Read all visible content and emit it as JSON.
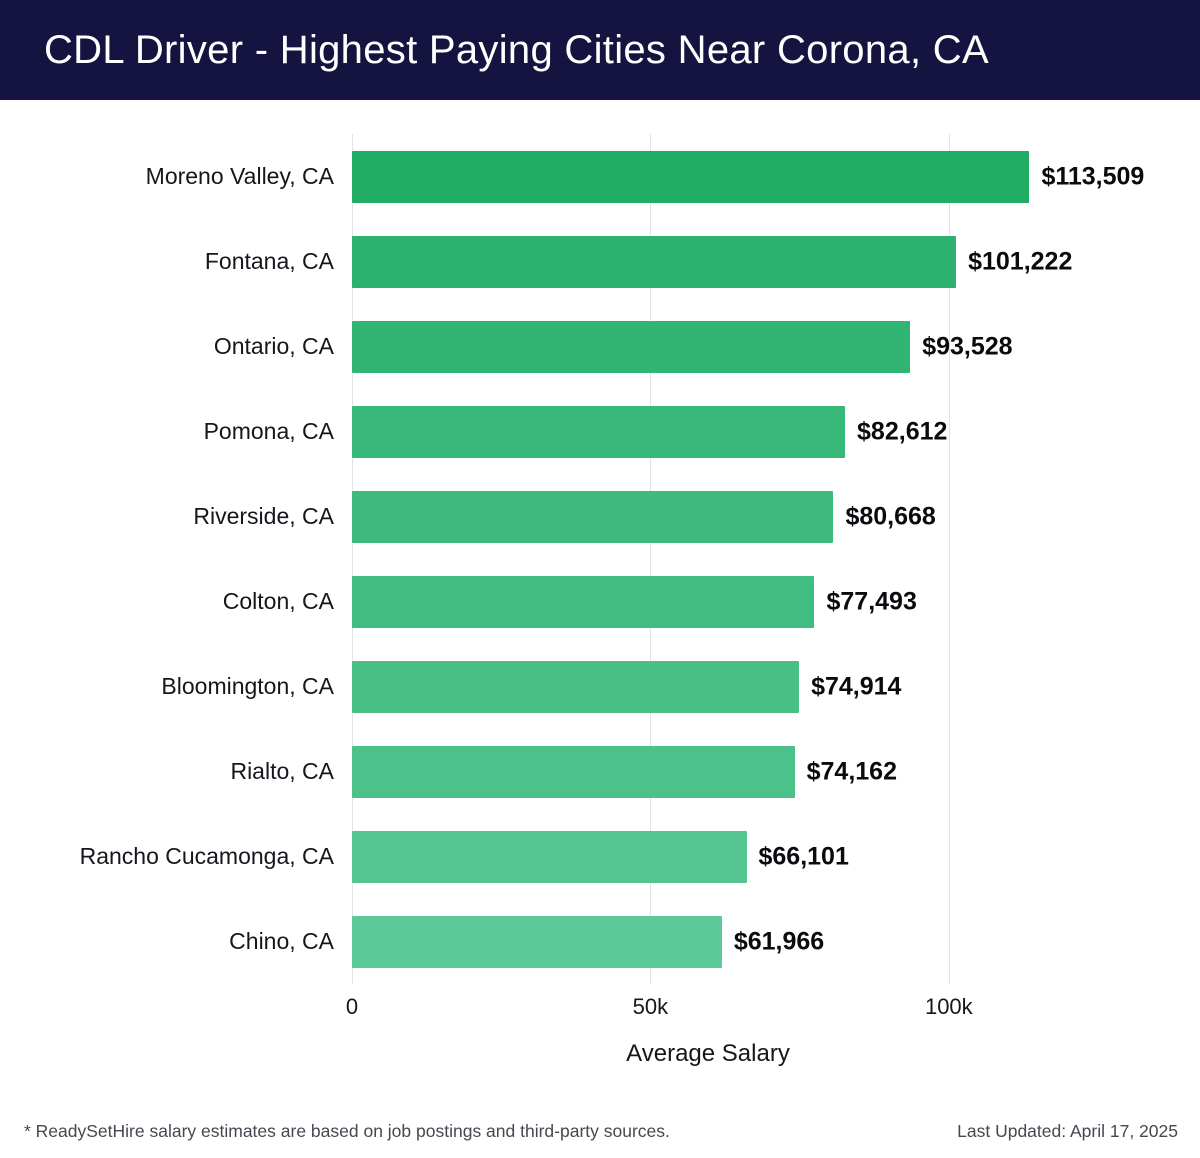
{
  "header": {
    "title": "CDL Driver - Highest Paying Cities Near Corona, CA"
  },
  "chart_data": {
    "type": "bar",
    "orientation": "horizontal",
    "title": "CDL Driver - Highest Paying Cities Near Corona, CA",
    "categories": [
      "Moreno Valley, CA",
      "Fontana, CA",
      "Ontario, CA",
      "Pomona, CA",
      "Riverside, CA",
      "Colton, CA",
      "Bloomington, CA",
      "Rialto, CA",
      "Rancho Cucamonga, CA",
      "Chino, CA"
    ],
    "values": [
      113509,
      101222,
      93528,
      82612,
      80668,
      77493,
      74914,
      74162,
      66101,
      61966
    ],
    "value_labels": [
      "$113,509",
      "$101,222",
      "$93,528",
      "$82,612",
      "$80,668",
      "$77,493",
      "$74,914",
      "$74,162",
      "$66,101",
      "$61,966"
    ],
    "bar_colors": [
      "#21ad64",
      "#2cb26e",
      "#32b573",
      "#38b878",
      "#3dba7c",
      "#42bd81",
      "#47bf85",
      "#4cc18a",
      "#54c591",
      "#5cc998"
    ],
    "xlabel": "Average Salary",
    "xlim": [
      0,
      119300
    ],
    "xticks": [
      {
        "value": 0,
        "label": "0"
      },
      {
        "value": 50000,
        "label": "50k"
      },
      {
        "value": 100000,
        "label": "100k"
      }
    ],
    "grid": "vertical",
    "legend": "none"
  },
  "footer": {
    "note": "* ReadySetHire salary estimates are based on job postings and third-party sources.",
    "last_updated": "Last Updated: April 17, 2025"
  },
  "colors": {
    "header_bg": "#151440",
    "title_text": "#ffffff",
    "bar_green": "#3dba7c",
    "gridline": "#e3e3e3"
  }
}
